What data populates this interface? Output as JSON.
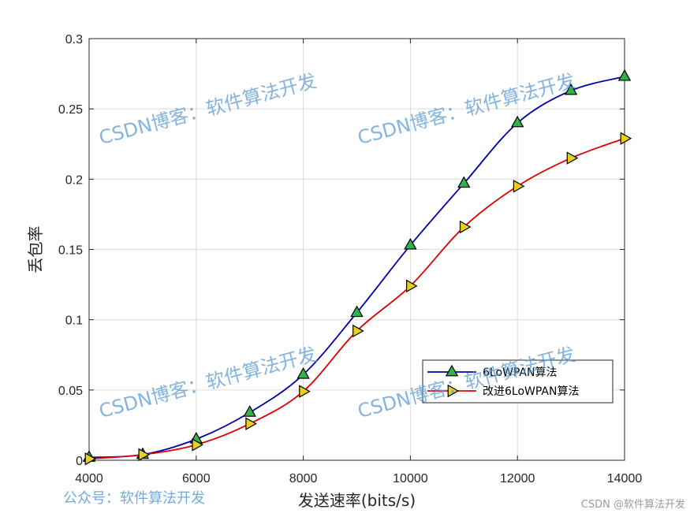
{
  "chart_data": {
    "type": "line",
    "xlabel": "发送速率(bits/s)",
    "ylabel": "丢包率",
    "xlim": [
      4000,
      14000
    ],
    "ylim": [
      0,
      0.3
    ],
    "xticks": [
      4000,
      6000,
      8000,
      10000,
      12000,
      14000
    ],
    "yticks": [
      0,
      0.05,
      0.1,
      0.15,
      0.2,
      0.25,
      0.3
    ],
    "xtick_labels": [
      "4000",
      "6000",
      "8000",
      "10000",
      "12000",
      "14000"
    ],
    "ytick_labels": [
      "0",
      "0.05",
      "0.1",
      "0.15",
      "0.2",
      "0.25",
      "0.3"
    ],
    "grid": true,
    "legend_position": "lower-right",
    "x": [
      4000,
      5000,
      6000,
      7000,
      8000,
      9000,
      10000,
      11000,
      12000,
      13000,
      14000
    ],
    "series": [
      {
        "name": "6LoWPAN算法",
        "values": [
          0.002,
          0.004,
          0.015,
          0.034,
          0.061,
          0.105,
          0.153,
          0.197,
          0.24,
          0.263,
          0.273
        ],
        "color": "#0000aa",
        "marker": "triangle-up",
        "marker_color": "#2fb34a"
      },
      {
        "name": "改进6LoWPAN算法",
        "values": [
          0.001,
          0.004,
          0.011,
          0.026,
          0.049,
          0.092,
          0.124,
          0.166,
          0.195,
          0.215,
          0.229
        ],
        "color": "#e00000",
        "marker": "triangle-right",
        "marker_color": "#e6d21a"
      }
    ]
  },
  "watermarks": {
    "text": "CSDN博客：软件算法开发",
    "footer": "公众号：软件算法开发",
    "credit": "CSDN @软件算法开发"
  }
}
